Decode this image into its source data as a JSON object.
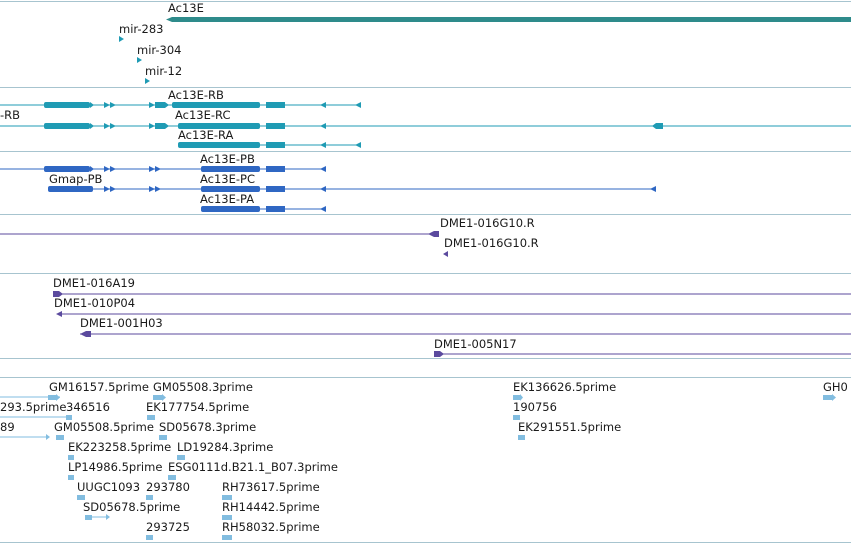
{
  "colors": {
    "gene": "#2e8b8b",
    "transcript": "#1f9bb4",
    "cds": "#2f67c3",
    "clone": "#5b4a9e",
    "est": "#82bde0",
    "separator": "#a7c4cf"
  },
  "tracks": {
    "gene": {
      "labels": [
        "Ac13E"
      ]
    },
    "mirna": {
      "labels": [
        "mir-283",
        "mir-304",
        "mir-12"
      ]
    },
    "transcripts": {
      "labels": [
        "Ac13E-RB",
        "Ac13E-RC",
        "Ac13E-RA",
        "-RB"
      ]
    },
    "cds": {
      "labels": [
        "Ac13E-PB",
        "Ac13E-PC",
        "Ac13E-PA",
        "Gmap-PB"
      ]
    },
    "clone_ends": {
      "labels": [
        "DME1-016G10.R",
        "DME1-016G10.R"
      ]
    },
    "clones": {
      "labels": [
        "DME1-016A19",
        "DME1-010P04",
        "DME1-001H03",
        "DME1-005N17"
      ]
    },
    "ests": {
      "labels": [
        "GM16157.5prime",
        "GM05508.3prime",
        "EK136626.5prime",
        "GH0",
        "293.5prime",
        "346516",
        "EK177754.5prime",
        "190756",
        "89",
        "GM05508.5prime",
        "SD05678.3prime",
        "EK291551.5prime",
        "EK223258.5prime",
        "LD19284.3prime",
        "LP14986.5prime",
        "ESG0111d.B21.1_B07.3prime",
        "UUGC1093",
        "293780",
        "RH73617.5prime",
        "SD05678.5prime",
        "RH14442.5prime",
        "293725",
        "RH58032.5prime"
      ]
    }
  }
}
